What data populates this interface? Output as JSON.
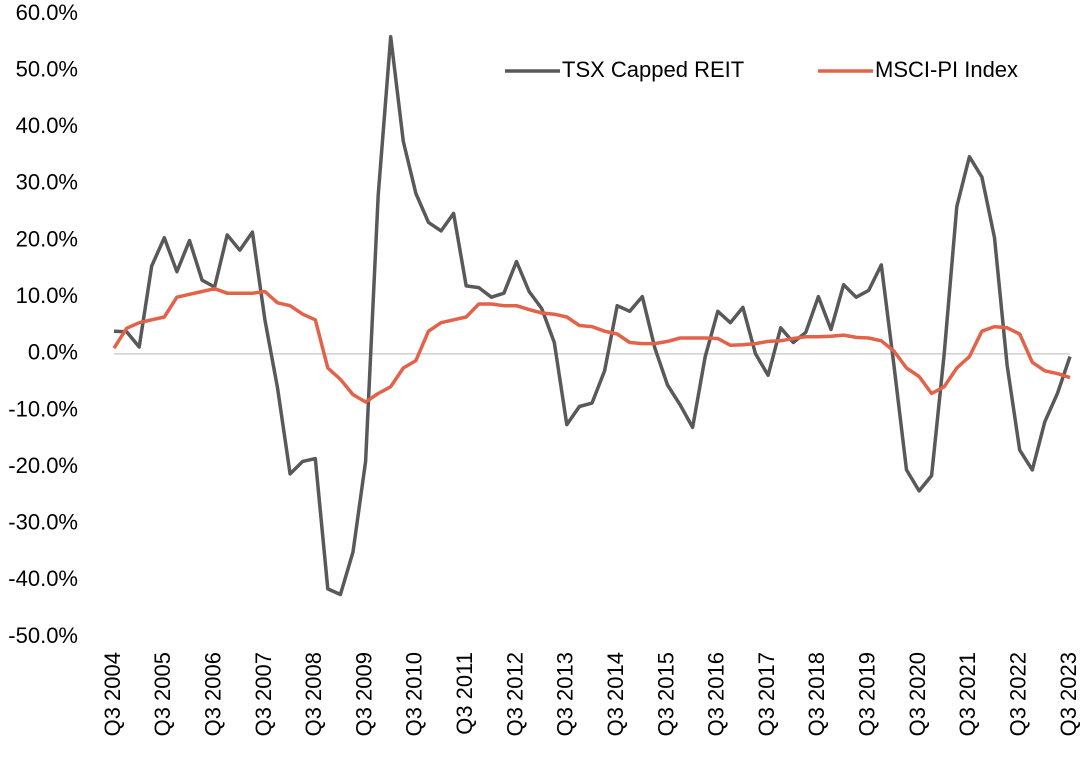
{
  "chart_data": {
    "type": "line",
    "categories": [
      "Q3 2004",
      null,
      null,
      null,
      "Q3 2005",
      null,
      null,
      null,
      "Q3 2006",
      null,
      null,
      null,
      "Q3 2007",
      null,
      null,
      null,
      "Q3 2008",
      null,
      null,
      null,
      "Q3 2009",
      null,
      null,
      null,
      "Q3 2010",
      null,
      null,
      null,
      "Q3 2011",
      null,
      null,
      null,
      "Q3 2012",
      null,
      null,
      null,
      "Q3 2013",
      null,
      null,
      null,
      "Q3 2014",
      null,
      null,
      null,
      "Q3 2015",
      null,
      null,
      null,
      "Q3 2016",
      null,
      null,
      null,
      "Q3 2017",
      null,
      null,
      null,
      "Q3 2018",
      null,
      null,
      null,
      "Q3 2019",
      null,
      null,
      null,
      "Q3 2020",
      null,
      null,
      null,
      "Q3 2021",
      null,
      null,
      null,
      "Q3 2022",
      null,
      null,
      null,
      "Q3 2023"
    ],
    "series": [
      {
        "name": "TSX Capped REIT",
        "color": "#595959",
        "values": [
          4.0,
          3.9,
          1.2,
          15.5,
          20.5,
          14.5,
          20.0,
          13.0,
          11.8,
          21.0,
          18.3,
          21.5,
          6.0,
          -6.0,
          -21.2,
          -19.0,
          -18.5,
          -41.5,
          -42.5,
          -35,
          -19,
          28,
          56,
          37.5,
          28.3,
          23.2,
          21.7,
          24.8,
          12,
          11.7,
          10,
          10.7,
          16.3,
          11,
          8,
          2,
          -12.5,
          -9.3,
          -8.7,
          -3,
          8.5,
          7.5,
          10.1,
          1,
          -5.5,
          -9,
          -13,
          -0.5,
          7.5,
          5.5,
          8.2,
          0,
          -3.8,
          4.6,
          2,
          3.8,
          10.1,
          4.3,
          12.2,
          10,
          11.2,
          15.7,
          -2,
          -20.5,
          -24.2,
          -21.5,
          0,
          26,
          34.8,
          31.2,
          20.5,
          -2,
          -17,
          -20.5,
          -12,
          -7,
          -0.5
        ]
      },
      {
        "name": "MSCI-PI Index",
        "color": "#e2624a",
        "values": [
          1.0,
          4.5,
          5.5,
          6.0,
          6.5,
          10.0,
          10.5,
          11.0,
          11.5,
          10.7,
          10.7,
          10.7,
          11.0,
          9.0,
          8.5,
          7.0,
          6.0,
          -2.5,
          -4.5,
          -7.2,
          -8.5,
          -7.0,
          -5.8,
          -2.5,
          -1.2,
          4.0,
          5.5,
          6.0,
          6.5,
          8.8,
          8.8,
          8.5,
          8.5,
          7.8,
          7.2,
          7.0,
          6.5,
          5.0,
          4.8,
          4.0,
          3.5,
          2.0,
          1.8,
          1.8,
          2.2,
          2.8,
          2.8,
          2.8,
          2.7,
          1.5,
          1.6,
          1.8,
          2.2,
          2.3,
          2.7,
          3.0,
          3.0,
          3.1,
          3.3,
          2.9,
          2.8,
          2.3,
          0.5,
          -2.5,
          -4.0,
          -7.0,
          -5.8,
          -2.5,
          -0.5,
          4.0,
          4.8,
          4.6,
          3.5,
          -1.5,
          -3.0,
          -3.5,
          -4.2
        ]
      }
    ],
    "ylim": [
      -50,
      60
    ],
    "yticks": [
      {
        "value": -50,
        "label": "-50.0%"
      },
      {
        "value": -40,
        "label": "-40.0%"
      },
      {
        "value": -30,
        "label": "-30.0%"
      },
      {
        "value": -20,
        "label": "-20.0%"
      },
      {
        "value": -10,
        "label": "-10.0%"
      },
      {
        "value": 0,
        "label": "0.0%"
      },
      {
        "value": 10,
        "label": "10.0%"
      },
      {
        "value": 20,
        "label": "20.0%"
      },
      {
        "value": 30,
        "label": "30.0%"
      },
      {
        "value": 40,
        "label": "40.0%"
      },
      {
        "value": 50,
        "label": "50.0%"
      },
      {
        "value": 60,
        "label": "60.0%"
      }
    ],
    "legend": "top-right"
  }
}
